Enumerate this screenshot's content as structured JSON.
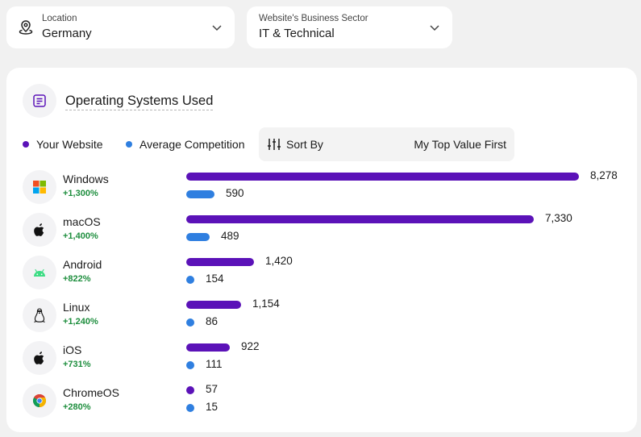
{
  "filters": {
    "location": {
      "label": "Location",
      "value": "Germany"
    },
    "sector": {
      "label": "Website's Business Sector",
      "value": "IT & Technical"
    }
  },
  "card": {
    "title": "Operating Systems Used",
    "legend": {
      "yours": "Your Website",
      "average": "Average Competition"
    },
    "sort": {
      "label": "Sort By",
      "value": "My Top Value First"
    }
  },
  "colors": {
    "yours": "#5b12b8",
    "average": "#2f7fe0",
    "positive_change": "#1e8e3e"
  },
  "rows": [
    {
      "name": "Windows",
      "icon": "windows-icon",
      "change": "+1,300%",
      "yours": 8278,
      "yours_label": "8,278",
      "average": 590,
      "average_label": "590"
    },
    {
      "name": "macOS",
      "icon": "apple-icon",
      "change": "+1,400%",
      "yours": 7330,
      "yours_label": "7,330",
      "average": 489,
      "average_label": "489"
    },
    {
      "name": "Android",
      "icon": "android-icon",
      "change": "+822%",
      "yours": 1420,
      "yours_label": "1,420",
      "average": 154,
      "average_label": "154"
    },
    {
      "name": "Linux",
      "icon": "linux-icon",
      "change": "+1,240%",
      "yours": 1154,
      "yours_label": "1,154",
      "average": 86,
      "average_label": "86"
    },
    {
      "name": "iOS",
      "icon": "apple-icon",
      "change": "+731%",
      "yours": 922,
      "yours_label": "922",
      "average": 111,
      "average_label": "111"
    },
    {
      "name": "ChromeOS",
      "icon": "chrome-icon",
      "change": "+280%",
      "yours": 57,
      "yours_label": "57",
      "average": 15,
      "average_label": "15"
    }
  ]
}
